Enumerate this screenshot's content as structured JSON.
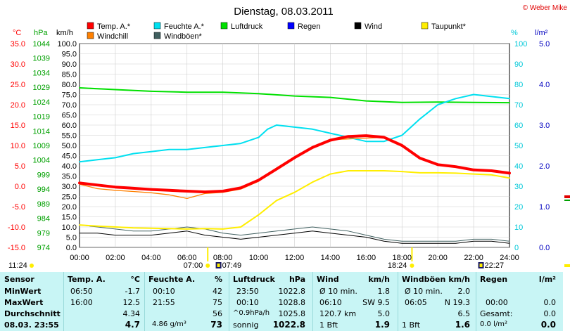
{
  "copyright": "© Weber Mike",
  "chart_data": {
    "type": "line",
    "title": "Dienstag, 08.03.2011",
    "x_ticks": [
      "00:00",
      "02:00",
      "04:00",
      "06:00",
      "08:00",
      "10:00",
      "12:00",
      "14:00",
      "16:00",
      "18:00",
      "20:00",
      "22:00",
      "24:00"
    ],
    "x_range": [
      0,
      24
    ],
    "axes": {
      "temp": {
        "label": "°C",
        "range": [
          -15,
          35
        ],
        "ticks": [
          "35.0",
          "30.0",
          "25.0",
          "20.0",
          "15.0",
          "10.0",
          "5.0",
          "0.0",
          "-5.0",
          "-10.0",
          "-15.0"
        ],
        "color": "#ff0000"
      },
      "pressure": {
        "label": "hPa",
        "range": [
          974,
          1044
        ],
        "ticks": [
          "1044",
          "1039",
          "1034",
          "1029",
          "1024",
          "1019",
          "1014",
          "1009",
          "1004",
          "999",
          "994",
          "989",
          "984",
          "979",
          "974"
        ],
        "color": "#00a000"
      },
      "wind": {
        "label": "km/h",
        "range": [
          0,
          100
        ],
        "ticks": [
          "100.0",
          "95.0",
          "90.0",
          "85.0",
          "80.0",
          "75.0",
          "70.0",
          "65.0",
          "60.0",
          "55.0",
          "50.0",
          "45.0",
          "40.0",
          "35.0",
          "30.0",
          "25.0",
          "20.0",
          "15.0",
          "10.0",
          "5.0",
          "0.0"
        ],
        "color": "#000000"
      },
      "humidity": {
        "label": "%",
        "range": [
          0,
          100
        ],
        "ticks": [
          "100",
          "90",
          "80",
          "70",
          "60",
          "50",
          "40",
          "30",
          "20",
          "10",
          "0"
        ],
        "color": "#00c8d8"
      },
      "rain": {
        "label": "l/m²",
        "range": [
          0,
          5
        ],
        "ticks": [
          "5.0",
          "4.0",
          "3.0",
          "2.0",
          "1.0",
          "0.0"
        ],
        "color": "#0000c0"
      }
    },
    "legend": [
      {
        "name": "Temp. A.*",
        "color": "#ff0000"
      },
      {
        "name": "Feuchte A.*",
        "color": "#00e0f0"
      },
      {
        "name": "Luftdruck",
        "color": "#00e000"
      },
      {
        "name": "Regen",
        "color": "#0000ff"
      },
      {
        "name": "Wind",
        "color": "#000000"
      },
      {
        "name": "Taupunkt*",
        "color": "#ffee00"
      },
      {
        "name": "Windchill",
        "color": "#ff8000"
      },
      {
        "name": "Windböen*",
        "color": "#406060"
      }
    ],
    "series": [
      {
        "name": "Temp. A.*",
        "axis": "temp",
        "color": "#ff0000",
        "x": [
          0,
          1,
          2,
          3,
          4,
          5,
          6,
          7,
          8,
          9,
          10,
          11,
          12,
          13,
          14,
          15,
          16,
          17,
          18,
          19,
          20,
          21,
          22,
          23,
          24
        ],
        "y": [
          0.8,
          0.3,
          -0.2,
          -0.5,
          -0.8,
          -1.0,
          -1.2,
          -1.4,
          -1.2,
          -0.4,
          1.5,
          4.2,
          7.0,
          9.5,
          11.3,
          12.2,
          12.4,
          12.0,
          10.0,
          6.9,
          5.3,
          4.8,
          4.0,
          3.8,
          3.2
        ]
      },
      {
        "name": "Windchill",
        "axis": "temp",
        "color": "#ff8000",
        "x": [
          0,
          1,
          2,
          3,
          4,
          5,
          6,
          7,
          8,
          9,
          10,
          11,
          12,
          13,
          14,
          15,
          16,
          17,
          18,
          19,
          20,
          21,
          22,
          23,
          24
        ],
        "y": [
          0.5,
          -0.6,
          -1.0,
          -1.3,
          -1.6,
          -2.1,
          -3.0,
          -1.8,
          -1.5,
          -0.7,
          1.2,
          4.5,
          7.2,
          9.6,
          11.4,
          11.6,
          11.8,
          12.0,
          10.0,
          6.9,
          5.3,
          4.8,
          4.0,
          3.8,
          3.2
        ]
      },
      {
        "name": "Luftdruck",
        "axis": "pressure",
        "color": "#00e000",
        "x": [
          0,
          2,
          4,
          6,
          8,
          10,
          12,
          14,
          16,
          18,
          20,
          22,
          24
        ],
        "y": [
          1028.8,
          1028.2,
          1027.6,
          1027.3,
          1027.3,
          1026.8,
          1026.0,
          1025.5,
          1024.3,
          1023.8,
          1023.9,
          1023.8,
          1023.7
        ]
      },
      {
        "name": "Feuchte A.*",
        "axis": "humidity",
        "color": "#00e0f0",
        "x": [
          0,
          1,
          2,
          3,
          4,
          5,
          6,
          7,
          8,
          9,
          10,
          10.5,
          11,
          12,
          13,
          14,
          15,
          16,
          17,
          18,
          19,
          20,
          21,
          22,
          23,
          24
        ],
        "y": [
          42,
          43,
          44,
          46,
          47,
          48,
          48,
          49,
          50,
          51,
          54,
          58,
          60,
          59,
          58,
          56,
          54,
          52,
          52,
          55,
          63,
          70,
          73,
          75,
          74,
          73
        ]
      },
      {
        "name": "Taupunkt*",
        "axis": "temp",
        "color": "#ffee00",
        "x": [
          0,
          1,
          2,
          3,
          4,
          5,
          6,
          7,
          8,
          9,
          10,
          11,
          12,
          13,
          14,
          15,
          16,
          17,
          18,
          19,
          20,
          21,
          22,
          23,
          24
        ],
        "y": [
          -9.5,
          -9.8,
          -10.0,
          -10.2,
          -10.3,
          -10.4,
          -10.5,
          -10.4,
          -10.5,
          -10.0,
          -7.0,
          -3.5,
          -1.5,
          1.0,
          3.0,
          3.8,
          3.8,
          3.8,
          3.6,
          3.3,
          3.3,
          3.2,
          3.0,
          2.8,
          2.0
        ]
      },
      {
        "name": "Windböen*",
        "axis": "wind",
        "color": "#406060",
        "x": [
          0,
          1,
          2,
          3,
          4,
          5,
          6,
          7,
          8,
          9,
          10,
          11,
          12,
          13,
          14,
          15,
          16,
          17,
          18,
          19,
          20,
          21,
          22,
          23,
          24
        ],
        "y": [
          11,
          10,
          9,
          8,
          8,
          9,
          10,
          9,
          7,
          6,
          7,
          8,
          9,
          10,
          9,
          8,
          6,
          4,
          3,
          3,
          3,
          3,
          4,
          4,
          3
        ]
      },
      {
        "name": "Wind",
        "axis": "wind",
        "color": "#000000",
        "x": [
          0,
          1,
          2,
          3,
          4,
          5,
          6,
          7,
          8,
          9,
          10,
          11,
          12,
          13,
          14,
          15,
          16,
          17,
          18,
          19,
          20,
          21,
          22,
          23,
          24
        ],
        "y": [
          7,
          7,
          6,
          6,
          6,
          7,
          8,
          6,
          5,
          4,
          5,
          6,
          7,
          8,
          7,
          6,
          5,
          3,
          2,
          2,
          2,
          2,
          3,
          3,
          2
        ]
      }
    ],
    "markers": [
      {
        "label": "07:00",
        "time": 7,
        "kind": "sunrise"
      },
      {
        "label": "07:49",
        "time": 7.8,
        "kind": "moon"
      },
      {
        "label": "18:24",
        "time": 18.4,
        "kind": "sunset"
      },
      {
        "label": "22:27",
        "time": 22.45,
        "kind": "moon"
      }
    ],
    "current_time": "11:24"
  },
  "table": {
    "headers": {
      "sensor": "Sensor",
      "temp": "Temp. A.",
      "temp_unit": "°C",
      "hum": "Feuchte A.",
      "hum_unit": "%",
      "press": "Luftdruck",
      "press_unit": "hPa",
      "wind": "Wind",
      "wind_unit": "km/h",
      "gust": "Windböen",
      "gust_unit": "km/h",
      "rain": "Regen",
      "rain_unit": "l/m²"
    },
    "row_labels": {
      "min": "MinWert",
      "max": "MaxWert",
      "avg": "Durchschnitt",
      "cur": "08.03. 23:55"
    },
    "temp": {
      "min_time": "06:50",
      "min": "-1.7",
      "max_time": "16:00",
      "max": "12.5",
      "avg": "4.34",
      "cur": "4.7"
    },
    "hum": {
      "min_time": "00:10",
      "min": "42",
      "max_time": "21:55",
      "max": "75",
      "avg": "56",
      "cur_extra": "4.86 g/m³",
      "cur": "73"
    },
    "press": {
      "min_time": "23:50",
      "min": "1022.8",
      "max_time": "00:10",
      "max": "1028.8",
      "trend": "^0.9hPa/h",
      "avg": "1025.8",
      "state": "sonnig",
      "cur": "1022.8"
    },
    "wind": {
      "r1_label": "Ø 10 min.",
      "r1": "1.8",
      "r2_label": "06:10",
      "r2": "SW 9.5",
      "r3_label": "120.7 km",
      "r3": "5.0",
      "bft": "1 Bft",
      "cur": "1.9"
    },
    "gust": {
      "r1_label": "Ø 10 min.",
      "r1": "2.0",
      "r2_label": "06:05",
      "r2": "N 19.3",
      "r3": "6.5",
      "bft": "1 Bft",
      "cur": "1.6"
    },
    "rain": {
      "r2_label": "00:00",
      "r2": "0.0",
      "r3_label": "Gesamt:",
      "r3": "0.0",
      "cur_extra": "0.0 l/m²",
      "cur": "0.0"
    }
  }
}
